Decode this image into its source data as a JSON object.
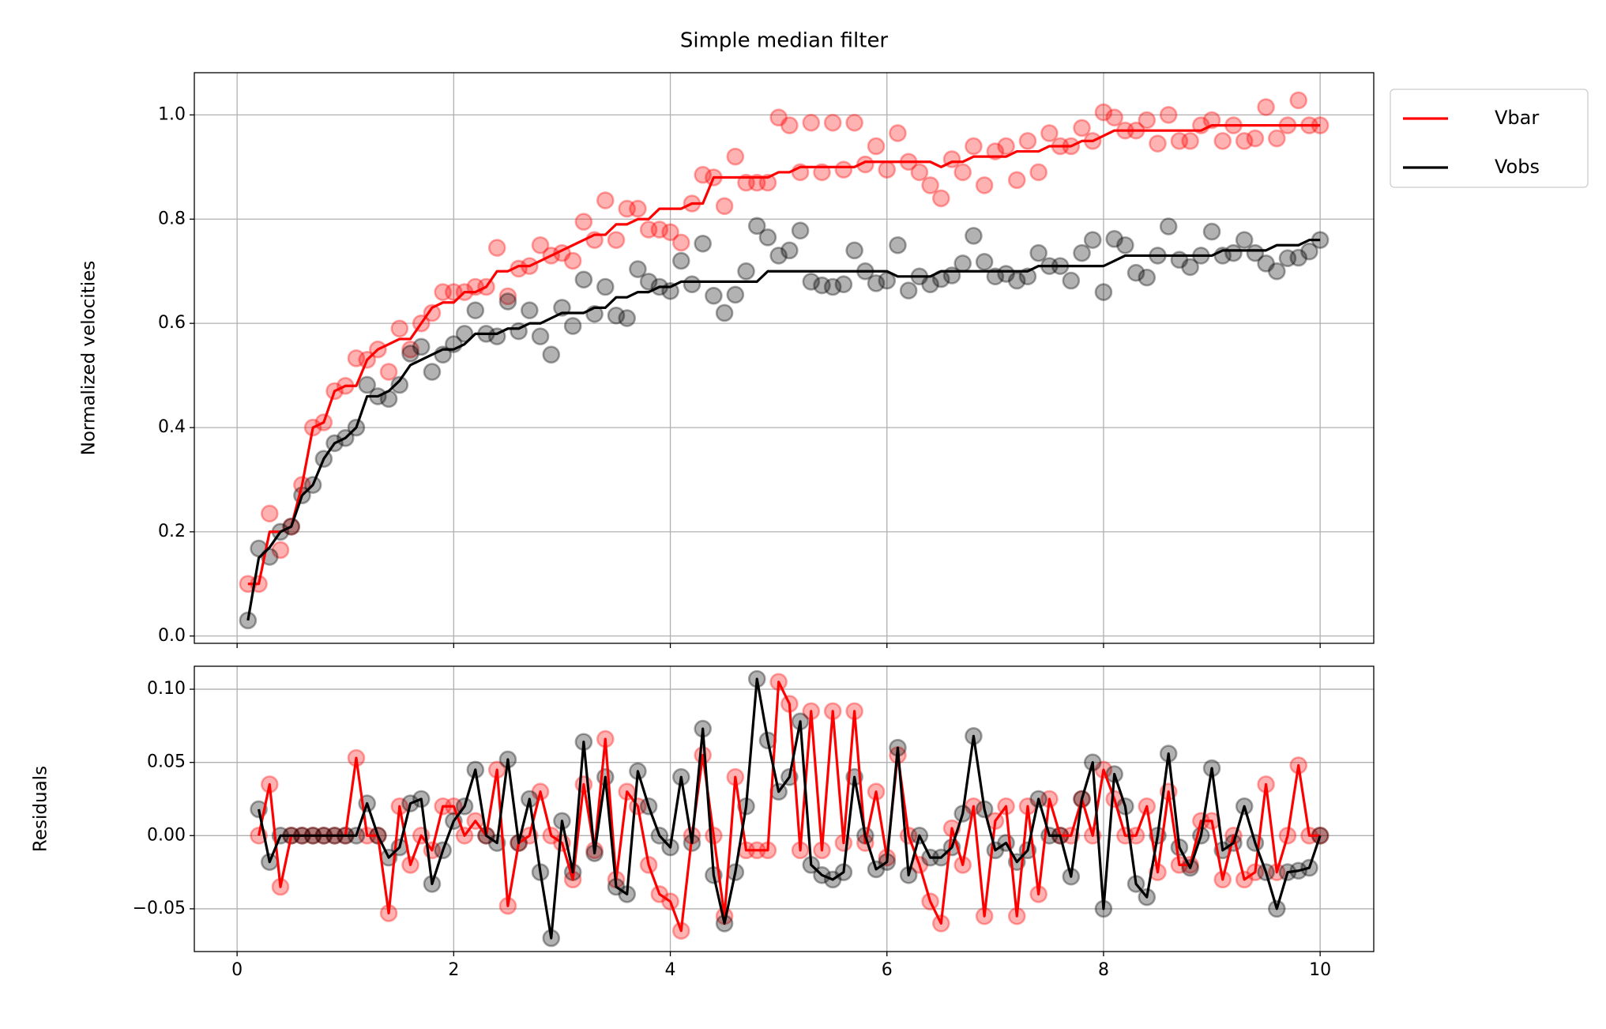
{
  "chart_data": [
    {
      "type": "line",
      "title": "Simple median filter",
      "ylabel": "Normalized velocities",
      "x": [
        0.1,
        0.2,
        0.3,
        0.4,
        0.5,
        0.6,
        0.7,
        0.8,
        0.9,
        1.0,
        1.1,
        1.2,
        1.3,
        1.4,
        1.5,
        1.6,
        1.7,
        1.8,
        1.9,
        2.0,
        2.1,
        2.2,
        2.3,
        2.4,
        2.5,
        2.6,
        2.7,
        2.8,
        2.9,
        3.0,
        3.1,
        3.2,
        3.3,
        3.4,
        3.5,
        3.6,
        3.7,
        3.8,
        3.9,
        4.0,
        4.1,
        4.2,
        4.3,
        4.4,
        4.5,
        4.6,
        4.7,
        4.8,
        4.9,
        5.0,
        5.1,
        5.2,
        5.3,
        5.4,
        5.5,
        5.6,
        5.7,
        5.8,
        5.9,
        6.0,
        6.1,
        6.2,
        6.3,
        6.4,
        6.5,
        6.6,
        6.7,
        6.8,
        6.9,
        7.0,
        7.1,
        7.2,
        7.3,
        7.4,
        7.5,
        7.6,
        7.7,
        7.8,
        7.9,
        8.0,
        8.1,
        8.2,
        8.3,
        8.4,
        8.5,
        8.6,
        8.7,
        8.8,
        8.9,
        9.0,
        9.1,
        9.2,
        9.3,
        9.4,
        9.5,
        9.6,
        9.7,
        9.8,
        9.9,
        10.0
      ],
      "series": [
        {
          "name": "Vbar",
          "color": "#ff0000",
          "values": [
            0.1,
            0.1,
            0.2,
            0.2,
            0.21,
            0.29,
            0.4,
            0.41,
            0.47,
            0.48,
            0.48,
            0.53,
            0.55,
            0.56,
            0.57,
            0.57,
            0.6,
            0.63,
            0.64,
            0.64,
            0.66,
            0.66,
            0.67,
            0.7,
            0.7,
            0.71,
            0.71,
            0.72,
            0.73,
            0.74,
            0.75,
            0.76,
            0.77,
            0.77,
            0.79,
            0.79,
            0.8,
            0.8,
            0.82,
            0.82,
            0.82,
            0.83,
            0.83,
            0.88,
            0.88,
            0.88,
            0.88,
            0.88,
            0.88,
            0.89,
            0.89,
            0.9,
            0.9,
            0.9,
            0.9,
            0.9,
            0.9,
            0.91,
            0.91,
            0.91,
            0.91,
            0.91,
            0.91,
            0.91,
            0.9,
            0.91,
            0.91,
            0.92,
            0.92,
            0.92,
            0.92,
            0.93,
            0.93,
            0.93,
            0.94,
            0.94,
            0.94,
            0.95,
            0.95,
            0.96,
            0.97,
            0.97,
            0.97,
            0.97,
            0.97,
            0.97,
            0.97,
            0.97,
            0.97,
            0.98,
            0.98,
            0.98,
            0.98,
            0.98,
            0.98,
            0.98,
            0.98,
            0.98,
            0.98,
            0.98
          ],
          "points": [
            0.1,
            0.1,
            0.235,
            0.165,
            0.21,
            0.29,
            0.4,
            0.41,
            0.47,
            0.48,
            0.533,
            0.53,
            0.55,
            0.507,
            0.59,
            0.55,
            0.6,
            0.62,
            0.66,
            0.66,
            0.66,
            0.67,
            0.67,
            0.745,
            0.652,
            0.705,
            0.71,
            0.75,
            0.73,
            0.735,
            0.72,
            0.795,
            0.76,
            0.836,
            0.76,
            0.82,
            0.82,
            0.78,
            0.78,
            0.775,
            0.755,
            0.83,
            0.885,
            0.88,
            0.825,
            0.92,
            0.87,
            0.87,
            0.87,
            0.995,
            0.98,
            0.89,
            0.985,
            0.89,
            0.985,
            0.895,
            0.985,
            0.905,
            0.94,
            0.895,
            0.965,
            0.91,
            0.89,
            0.865,
            0.84,
            0.915,
            0.89,
            0.94,
            0.865,
            0.93,
            0.94,
            0.875,
            0.95,
            0.89,
            0.965,
            0.94,
            0.94,
            0.975,
            0.95,
            1.005,
            0.995,
            0.97,
            0.97,
            0.99,
            0.945,
            1.0,
            0.95,
            0.95,
            0.98,
            0.99,
            0.95,
            0.98,
            0.95,
            0.955,
            1.015,
            0.955,
            0.98,
            1.028,
            0.98,
            0.98
          ]
        },
        {
          "name": "Vobs",
          "color": "#000000",
          "values": [
            0.03,
            0.15,
            0.17,
            0.2,
            0.21,
            0.27,
            0.29,
            0.34,
            0.37,
            0.38,
            0.4,
            0.46,
            0.46,
            0.47,
            0.49,
            0.52,
            0.53,
            0.54,
            0.55,
            0.55,
            0.56,
            0.58,
            0.58,
            0.58,
            0.59,
            0.59,
            0.6,
            0.6,
            0.61,
            0.62,
            0.62,
            0.62,
            0.63,
            0.63,
            0.65,
            0.65,
            0.66,
            0.66,
            0.67,
            0.67,
            0.68,
            0.68,
            0.68,
            0.68,
            0.68,
            0.68,
            0.68,
            0.68,
            0.7,
            0.7,
            0.7,
            0.7,
            0.7,
            0.7,
            0.7,
            0.7,
            0.7,
            0.7,
            0.7,
            0.7,
            0.69,
            0.69,
            0.69,
            0.69,
            0.7,
            0.7,
            0.7,
            0.7,
            0.7,
            0.7,
            0.7,
            0.7,
            0.7,
            0.71,
            0.71,
            0.71,
            0.71,
            0.71,
            0.71,
            0.71,
            0.72,
            0.73,
            0.73,
            0.73,
            0.73,
            0.73,
            0.73,
            0.73,
            0.73,
            0.73,
            0.74,
            0.74,
            0.74,
            0.74,
            0.74,
            0.75,
            0.75,
            0.75,
            0.76,
            0.76
          ],
          "points": [
            0.03,
            0.168,
            0.152,
            0.2,
            0.21,
            0.27,
            0.29,
            0.34,
            0.37,
            0.38,
            0.4,
            0.482,
            0.46,
            0.455,
            0.482,
            0.542,
            0.555,
            0.507,
            0.54,
            0.56,
            0.58,
            0.625,
            0.58,
            0.575,
            0.642,
            0.585,
            0.625,
            0.575,
            0.54,
            0.63,
            0.595,
            0.684,
            0.618,
            0.67,
            0.615,
            0.61,
            0.704,
            0.68,
            0.67,
            0.662,
            0.72,
            0.675,
            0.753,
            0.653,
            0.62,
            0.655,
            0.7,
            0.787,
            0.765,
            0.73,
            0.74,
            0.778,
            0.68,
            0.673,
            0.67,
            0.675,
            0.74,
            0.7,
            0.677,
            0.682,
            0.75,
            0.663,
            0.69,
            0.675,
            0.685,
            0.692,
            0.715,
            0.768,
            0.718,
            0.69,
            0.695,
            0.682,
            0.69,
            0.735,
            0.71,
            0.71,
            0.682,
            0.735,
            0.76,
            0.66,
            0.762,
            0.75,
            0.697,
            0.688,
            0.73,
            0.786,
            0.722,
            0.708,
            0.73,
            0.776,
            0.73,
            0.735,
            0.76,
            0.735,
            0.715,
            0.7,
            0.725,
            0.726,
            0.738,
            0.76
          ]
        }
      ],
      "xlim": [
        -0.395,
        10.495
      ],
      "ylim": [
        -0.014,
        1.081
      ],
      "xticks": [
        0,
        2,
        4,
        6,
        8,
        10
      ],
      "yticks": [
        {
          "value": 0,
          "label": "0.0"
        },
        0.2,
        0.4,
        0.6,
        0.8,
        {
          "value": 1,
          "label": "1.0"
        }
      ],
      "grid": true,
      "legend": "upper right outside"
    },
    {
      "type": "line",
      "ylabel": "Residuals",
      "x": [
        0.1,
        0.2,
        0.3,
        0.4,
        0.5,
        0.6,
        0.7,
        0.8,
        0.9,
        1.0,
        1.1,
        1.2,
        1.3,
        1.4,
        1.5,
        1.6,
        1.7,
        1.8,
        1.9,
        2.0,
        2.1,
        2.2,
        2.3,
        2.4,
        2.5,
        2.6,
        2.7,
        2.8,
        2.9,
        3.0,
        3.1,
        3.2,
        3.3,
        3.4,
        3.5,
        3.6,
        3.7,
        3.8,
        3.9,
        4.0,
        4.1,
        4.2,
        4.3,
        4.4,
        4.5,
        4.6,
        4.7,
        4.8,
        4.9,
        5.0,
        5.1,
        5.2,
        5.3,
        5.4,
        5.5,
        5.6,
        5.7,
        5.8,
        5.9,
        6.0,
        6.1,
        6.2,
        6.3,
        6.4,
        6.5,
        6.6,
        6.7,
        6.8,
        6.9,
        7.0,
        7.1,
        7.2,
        7.3,
        7.4,
        7.5,
        7.6,
        7.7,
        7.8,
        7.9,
        8.0,
        8.1,
        8.2,
        8.3,
        8.4,
        8.5,
        8.6,
        8.7,
        8.8,
        8.9,
        9.0,
        9.1,
        9.2,
        9.3,
        9.4,
        9.5,
        9.6,
        9.7,
        9.8,
        9.9,
        10.0
      ],
      "series": [
        {
          "color": "#ff0000",
          "values": [
            null,
            0,
            0.035,
            -0.035,
            0,
            0,
            0,
            0,
            0,
            0,
            0.053,
            0,
            0,
            -0.053,
            0.02,
            -0.02,
            0,
            -0.01,
            0.02,
            0.02,
            0,
            0.01,
            0,
            0.045,
            -0.048,
            -0.005,
            0,
            0.03,
            0,
            -0.005,
            -0.03,
            0.035,
            -0.01,
            0.066,
            -0.03,
            0.03,
            0.02,
            -0.02,
            -0.04,
            -0.045,
            -0.065,
            0,
            0.055,
            0,
            -0.055,
            0.04,
            -0.01,
            -0.01,
            -0.01,
            0.105,
            0.09,
            -0.01,
            0.085,
            -0.01,
            0.085,
            -0.005,
            0.085,
            -0.005,
            0.03,
            -0.015,
            0.055,
            0,
            -0.02,
            -0.045,
            -0.06,
            0.005,
            -0.02,
            0.02,
            -0.055,
            0.01,
            0.02,
            -0.055,
            0.02,
            -0.04,
            0.025,
            0,
            0,
            0.025,
            0,
            0.045,
            0.025,
            0,
            0,
            0.02,
            -0.025,
            0.03,
            -0.02,
            -0.02,
            0.01,
            0.01,
            -0.03,
            0,
            -0.03,
            -0.025,
            0.035,
            -0.025,
            0,
            0.048,
            0,
            0
          ]
        },
        {
          "color": "#000000",
          "values": [
            null,
            0.018,
            -0.018,
            0,
            0,
            0,
            0,
            0,
            0,
            0,
            0,
            0.022,
            0,
            -0.015,
            -0.008,
            0.022,
            0.025,
            -0.033,
            -0.01,
            0.01,
            0.02,
            0.045,
            0,
            -0.005,
            0.052,
            -0.005,
            0.025,
            -0.025,
            -0.07,
            0.01,
            -0.025,
            0.064,
            -0.012,
            0.04,
            -0.035,
            -0.04,
            0.044,
            0.02,
            0,
            -0.008,
            0.04,
            -0.005,
            0.073,
            -0.027,
            -0.06,
            -0.025,
            0.02,
            0.107,
            0.065,
            0.03,
            0.04,
            0.078,
            -0.02,
            -0.027,
            -0.03,
            -0.025,
            0.04,
            0,
            -0.023,
            -0.018,
            0.06,
            -0.027,
            0,
            -0.015,
            -0.015,
            -0.008,
            0.015,
            0.068,
            0.018,
            -0.01,
            -0.005,
            -0.018,
            -0.01,
            0.025,
            0,
            0,
            -0.028,
            0.025,
            0.05,
            -0.05,
            0.042,
            0.02,
            -0.033,
            -0.042,
            0,
            0.056,
            -0.008,
            -0.022,
            0,
            0.046,
            -0.01,
            -0.005,
            0.02,
            -0.005,
            -0.025,
            -0.05,
            -0.025,
            -0.024,
            -0.022,
            0
          ]
        }
      ],
      "xlim": [
        -0.395,
        10.495
      ],
      "ylim": [
        -0.0792,
        0.1157
      ],
      "xticks": [
        0,
        2,
        4,
        6,
        8,
        10
      ],
      "yticks": [
        {
          "value": -0.05,
          "label": "−0.05"
        },
        {
          "value": 0,
          "label": "0.00"
        },
        0.05,
        {
          "value": 0.1,
          "label": "0.10"
        }
      ],
      "grid": true
    }
  ]
}
